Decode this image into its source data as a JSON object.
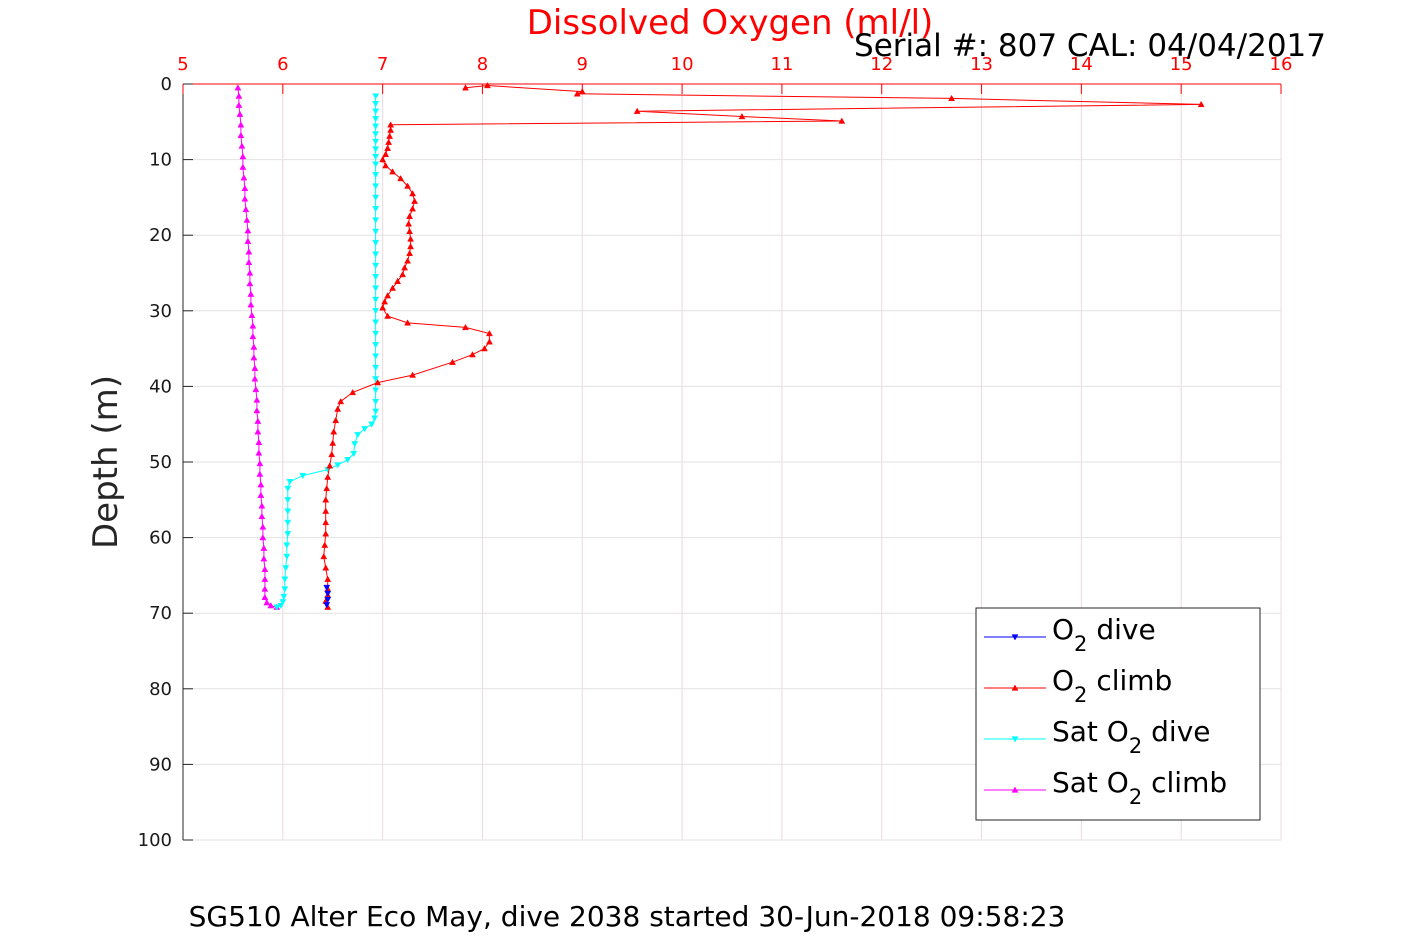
{
  "header": {
    "title": "Dissolved Oxygen (ml/l)",
    "serial": "Serial #: 807  CAL: 04/04/2017"
  },
  "footer": {
    "caption": "SG510 Alter Eco May, dive 2038 started 30-Jun-2018 09:58:23"
  },
  "chart_data": {
    "type": "line",
    "title": "Dissolved Oxygen (ml/l)",
    "xlabel": "Dissolved Oxygen (ml/l)",
    "ylabel": "Depth (m)",
    "xlim": [
      5,
      16
    ],
    "ylim": [
      0,
      100
    ],
    "y_reversed": true,
    "x_axis_position": "top",
    "xticks": [
      5,
      6,
      7,
      8,
      9,
      10,
      11,
      12,
      13,
      14,
      15,
      16
    ],
    "yticks": [
      0,
      10,
      20,
      30,
      40,
      50,
      60,
      70,
      80,
      90,
      100
    ],
    "grid": true,
    "legend_position": "bottom-right",
    "colors": {
      "axis_x": "#ff0000",
      "grid": "#dddddd",
      "o2_dive": "#0000ff",
      "o2_climb": "#ff0000",
      "sat_dive": "#00ffff",
      "sat_climb": "#ff00ff"
    },
    "series": [
      {
        "id": "o2_dive",
        "legend": {
          "pre": "O",
          "sub": "2",
          "post": " dive"
        },
        "color": "#0000ff",
        "marker": "down",
        "points": [
          [
            6.44,
            66.6
          ],
          [
            6.45,
            67.4
          ],
          [
            6.45,
            68.2
          ],
          [
            6.44,
            68.9
          ]
        ]
      },
      {
        "id": "o2_climb",
        "legend": {
          "pre": "O",
          "sub": "2",
          "post": " climb"
        },
        "color": "#ff0000",
        "marker": "up",
        "points": [
          [
            6.45,
            69.2
          ],
          [
            6.43,
            68.4
          ],
          [
            6.45,
            67.6
          ],
          [
            6.45,
            66.8
          ],
          [
            6.45,
            65.5
          ],
          [
            6.43,
            64.0
          ],
          [
            6.41,
            62.5
          ],
          [
            6.42,
            61.0
          ],
          [
            6.43,
            59.5
          ],
          [
            6.43,
            58.0
          ],
          [
            6.43,
            56.5
          ],
          [
            6.43,
            55.0
          ],
          [
            6.44,
            53.5
          ],
          [
            6.45,
            52.0
          ],
          [
            6.47,
            50.5
          ],
          [
            6.49,
            49.0
          ],
          [
            6.5,
            47.5
          ],
          [
            6.51,
            46.0
          ],
          [
            6.53,
            44.5
          ],
          [
            6.55,
            43.0
          ],
          [
            6.58,
            42.0
          ],
          [
            6.7,
            40.8
          ],
          [
            6.95,
            39.5
          ],
          [
            7.3,
            38.5
          ],
          [
            7.7,
            36.8
          ],
          [
            7.9,
            35.8
          ],
          [
            8.02,
            35.0
          ],
          [
            8.07,
            34.1
          ],
          [
            8.07,
            33.0
          ],
          [
            7.83,
            32.2
          ],
          [
            7.25,
            31.6
          ],
          [
            7.05,
            30.7
          ],
          [
            7.0,
            29.6
          ],
          [
            7.02,
            28.8
          ],
          [
            7.05,
            28.0
          ],
          [
            7.1,
            27.0
          ],
          [
            7.15,
            26.1
          ],
          [
            7.2,
            25.2
          ],
          [
            7.22,
            24.3
          ],
          [
            7.25,
            23.4
          ],
          [
            7.27,
            22.4
          ],
          [
            7.28,
            21.5
          ],
          [
            7.28,
            20.5
          ],
          [
            7.27,
            19.5
          ],
          [
            7.26,
            18.5
          ],
          [
            7.27,
            17.5
          ],
          [
            7.3,
            16.5
          ],
          [
            7.32,
            15.5
          ],
          [
            7.3,
            14.5
          ],
          [
            7.25,
            13.5
          ],
          [
            7.18,
            12.5
          ],
          [
            7.1,
            11.6
          ],
          [
            7.03,
            10.8
          ],
          [
            7.0,
            10.0
          ],
          [
            7.03,
            9.3
          ],
          [
            7.05,
            8.5
          ],
          [
            7.06,
            7.7
          ],
          [
            7.07,
            6.9
          ],
          [
            7.08,
            6.1
          ],
          [
            7.08,
            5.4
          ],
          [
            11.6,
            4.9
          ],
          [
            10.6,
            4.3
          ],
          [
            9.55,
            3.6
          ],
          [
            15.2,
            2.7
          ],
          [
            12.7,
            1.9
          ],
          [
            8.95,
            1.3
          ],
          [
            9.0,
            1.0
          ],
          [
            8.05,
            0.2
          ],
          [
            7.83,
            0.5
          ]
        ]
      },
      {
        "id": "sat_dive",
        "legend": {
          "pre": "Sat O",
          "sub": "2",
          "post": " dive"
        },
        "color": "#00ffff",
        "marker": "down",
        "points": [
          [
            6.93,
            1.6
          ],
          [
            6.93,
            2.6
          ],
          [
            6.93,
            3.6
          ],
          [
            6.93,
            4.6
          ],
          [
            6.93,
            5.6
          ],
          [
            6.93,
            6.6
          ],
          [
            6.93,
            7.6
          ],
          [
            6.93,
            8.6
          ],
          [
            6.93,
            9.6
          ],
          [
            6.93,
            10.6
          ],
          [
            6.93,
            12.0
          ],
          [
            6.93,
            13.5
          ],
          [
            6.93,
            15.0
          ],
          [
            6.93,
            16.5
          ],
          [
            6.93,
            18.0
          ],
          [
            6.93,
            19.5
          ],
          [
            6.93,
            21.0
          ],
          [
            6.93,
            22.5
          ],
          [
            6.93,
            24.0
          ],
          [
            6.93,
            25.5
          ],
          [
            6.93,
            27.0
          ],
          [
            6.93,
            28.5
          ],
          [
            6.93,
            30.0
          ],
          [
            6.93,
            31.5
          ],
          [
            6.93,
            33.0
          ],
          [
            6.93,
            34.5
          ],
          [
            6.93,
            36.0
          ],
          [
            6.93,
            37.5
          ],
          [
            6.93,
            39.0
          ],
          [
            6.93,
            40.5
          ],
          [
            6.93,
            42.0
          ],
          [
            6.93,
            43.3
          ],
          [
            6.92,
            44.2
          ],
          [
            6.89,
            45.0
          ],
          [
            6.82,
            45.6
          ],
          [
            6.75,
            46.4
          ],
          [
            6.72,
            47.6
          ],
          [
            6.71,
            48.9
          ],
          [
            6.65,
            49.7
          ],
          [
            6.55,
            50.4
          ],
          [
            6.45,
            51.0
          ],
          [
            6.2,
            51.8
          ],
          [
            6.07,
            52.6
          ],
          [
            6.05,
            53.5
          ],
          [
            6.05,
            55.0
          ],
          [
            6.05,
            56.5
          ],
          [
            6.05,
            58.0
          ],
          [
            6.05,
            59.5
          ],
          [
            6.04,
            61.0
          ],
          [
            6.04,
            62.5
          ],
          [
            6.03,
            64.0
          ],
          [
            6.02,
            65.5
          ],
          [
            6.02,
            66.8
          ],
          [
            6.01,
            67.8
          ],
          [
            6.0,
            68.5
          ],
          [
            5.98,
            69.0
          ],
          [
            5.94,
            69.2
          ]
        ]
      },
      {
        "id": "sat_climb",
        "legend": {
          "pre": "Sat O",
          "sub": "2",
          "post": " climb"
        },
        "color": "#ff00ff",
        "marker": "up",
        "points": [
          [
            5.94,
            69.2
          ],
          [
            5.88,
            69.0
          ],
          [
            5.84,
            68.6
          ],
          [
            5.82,
            67.9
          ],
          [
            5.82,
            66.8
          ],
          [
            5.82,
            65.5
          ],
          [
            5.82,
            64.2
          ],
          [
            5.81,
            62.8
          ],
          [
            5.81,
            61.4
          ],
          [
            5.8,
            60.0
          ],
          [
            5.8,
            58.6
          ],
          [
            5.79,
            57.2
          ],
          [
            5.79,
            55.8
          ],
          [
            5.78,
            54.4
          ],
          [
            5.78,
            53.0
          ],
          [
            5.77,
            51.6
          ],
          [
            5.77,
            50.2
          ],
          [
            5.76,
            48.8
          ],
          [
            5.76,
            47.4
          ],
          [
            5.75,
            46.0
          ],
          [
            5.75,
            44.6
          ],
          [
            5.74,
            43.2
          ],
          [
            5.74,
            41.8
          ],
          [
            5.73,
            40.4
          ],
          [
            5.72,
            39.0
          ],
          [
            5.72,
            37.6
          ],
          [
            5.71,
            36.2
          ],
          [
            5.71,
            34.8
          ],
          [
            5.7,
            33.4
          ],
          [
            5.7,
            32.0
          ],
          [
            5.69,
            30.6
          ],
          [
            5.68,
            29.2
          ],
          [
            5.68,
            27.8
          ],
          [
            5.67,
            26.4
          ],
          [
            5.67,
            25.0
          ],
          [
            5.66,
            23.6
          ],
          [
            5.66,
            22.2
          ],
          [
            5.65,
            20.8
          ],
          [
            5.65,
            19.4
          ],
          [
            5.64,
            18.0
          ],
          [
            5.63,
            16.6
          ],
          [
            5.62,
            15.2
          ],
          [
            5.62,
            13.8
          ],
          [
            5.61,
            12.4
          ],
          [
            5.6,
            11.0
          ],
          [
            5.6,
            9.6
          ],
          [
            5.59,
            8.2
          ],
          [
            5.58,
            6.8
          ],
          [
            5.58,
            5.4
          ],
          [
            5.57,
            4.0
          ],
          [
            5.56,
            2.8
          ],
          [
            5.56,
            1.6
          ],
          [
            5.55,
            0.5
          ]
        ]
      }
    ]
  }
}
